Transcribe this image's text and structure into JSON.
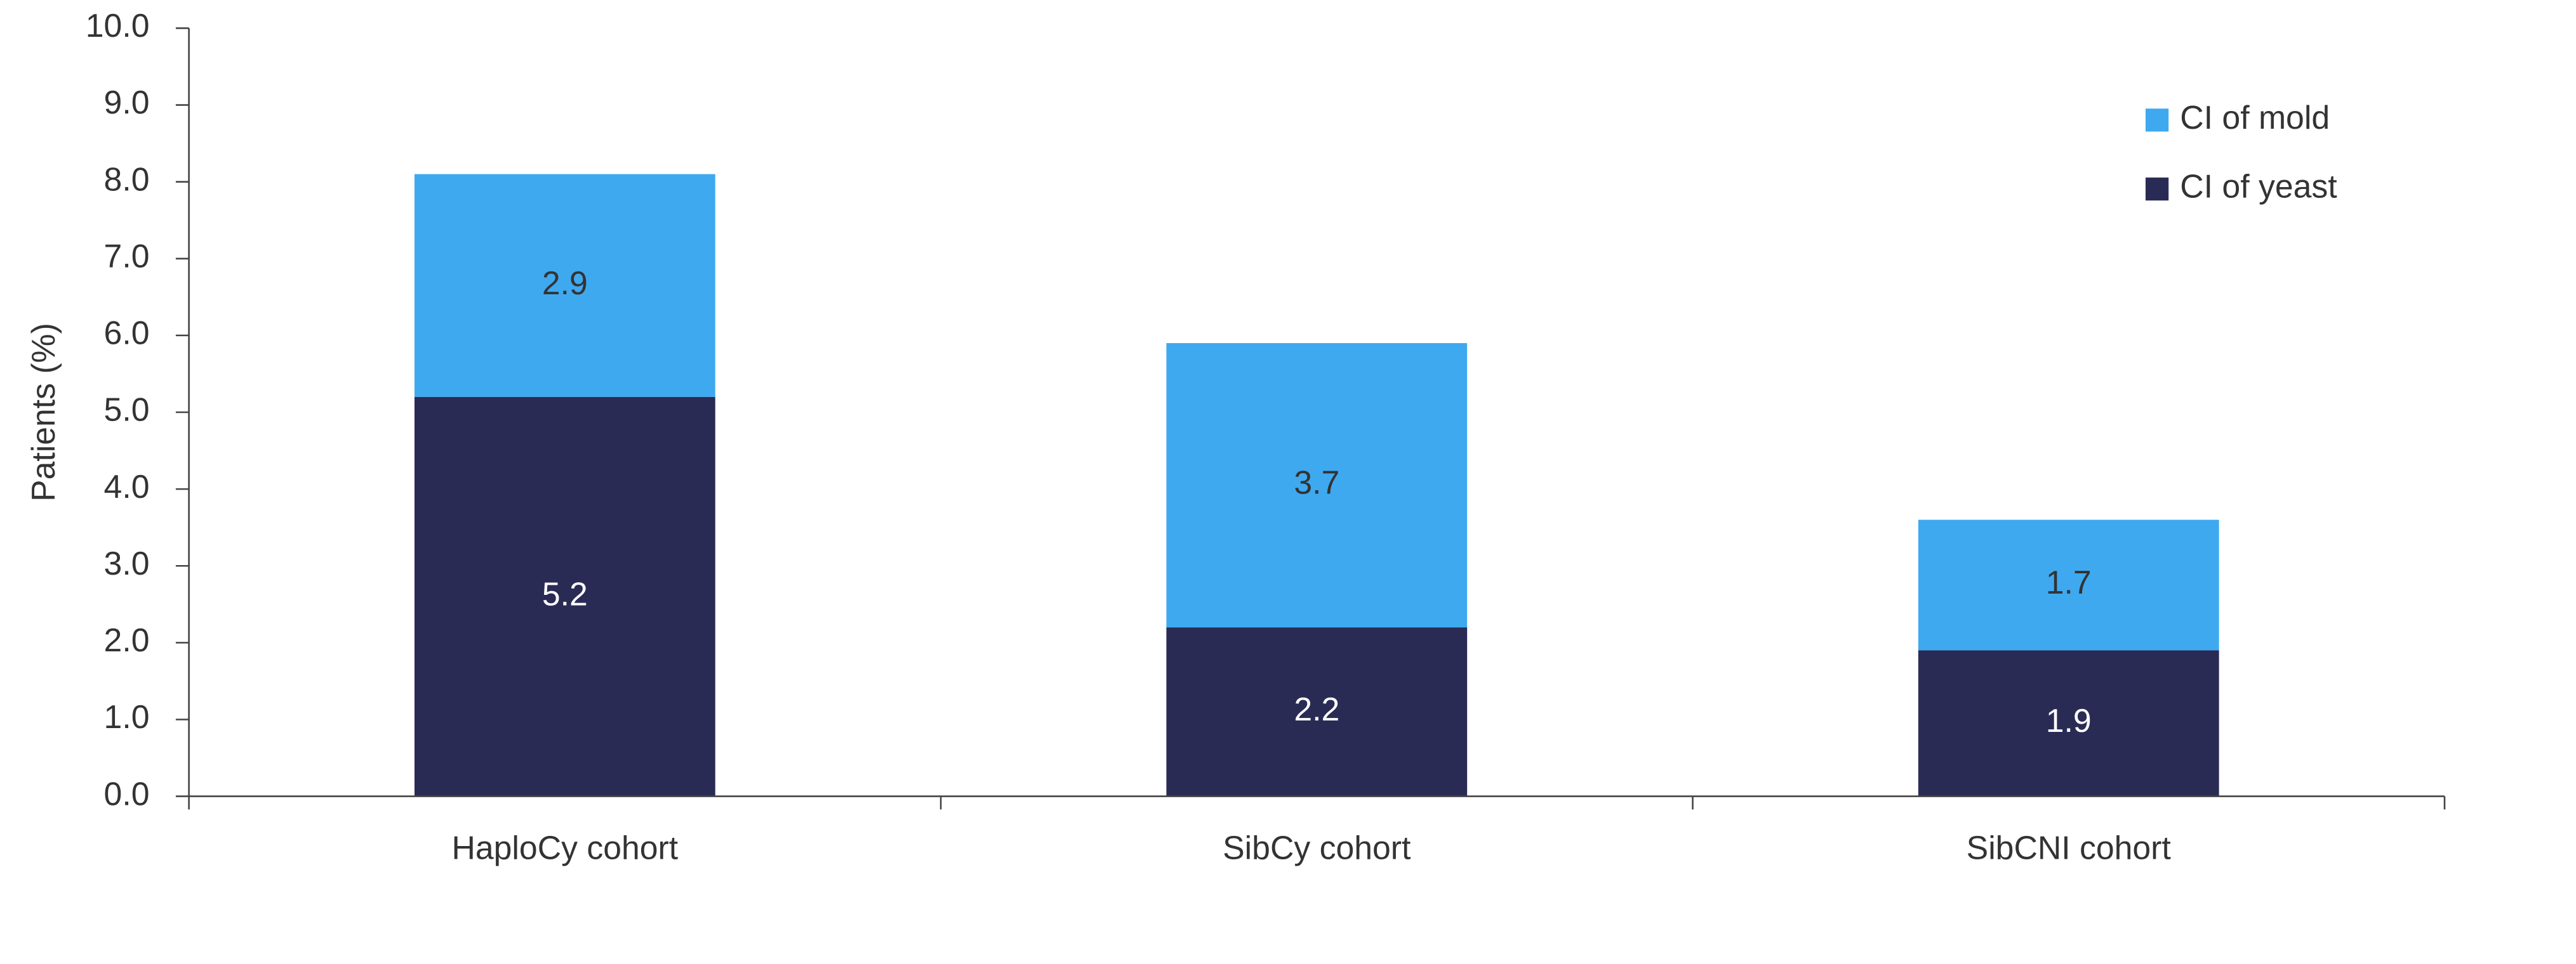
{
  "chart_data": {
    "type": "stacked-bar",
    "y_label": "Patients (%)",
    "categories": [
      "HaploCy cohort",
      "SibCy cohort",
      "SibCNI cohort"
    ],
    "series": [
      {
        "name": "CI of yeast",
        "color": "#2a2b55",
        "values": [
          5.2,
          2.2,
          1.9
        ]
      },
      {
        "name": "CI of mold",
        "color": "#3fa9f0",
        "values": [
          2.9,
          3.7,
          1.7
        ]
      }
    ],
    "ylim": [
      0,
      10
    ],
    "yticks": [
      {
        "value": 0,
        "label": "0.0"
      },
      {
        "value": 1,
        "label": "1.0"
      },
      {
        "value": 2,
        "label": "2.0"
      },
      {
        "value": 3,
        "label": "3.0"
      },
      {
        "value": 4,
        "label": "4.0"
      },
      {
        "value": 5,
        "label": "5.0"
      },
      {
        "value": 6,
        "label": "6.0"
      },
      {
        "value": 7,
        "label": "7.0"
      },
      {
        "value": 8,
        "label": "8.0"
      },
      {
        "value": 9,
        "label": "9.0"
      },
      {
        "value": 10,
        "label": "10.0"
      }
    ],
    "legend": "upper right"
  }
}
